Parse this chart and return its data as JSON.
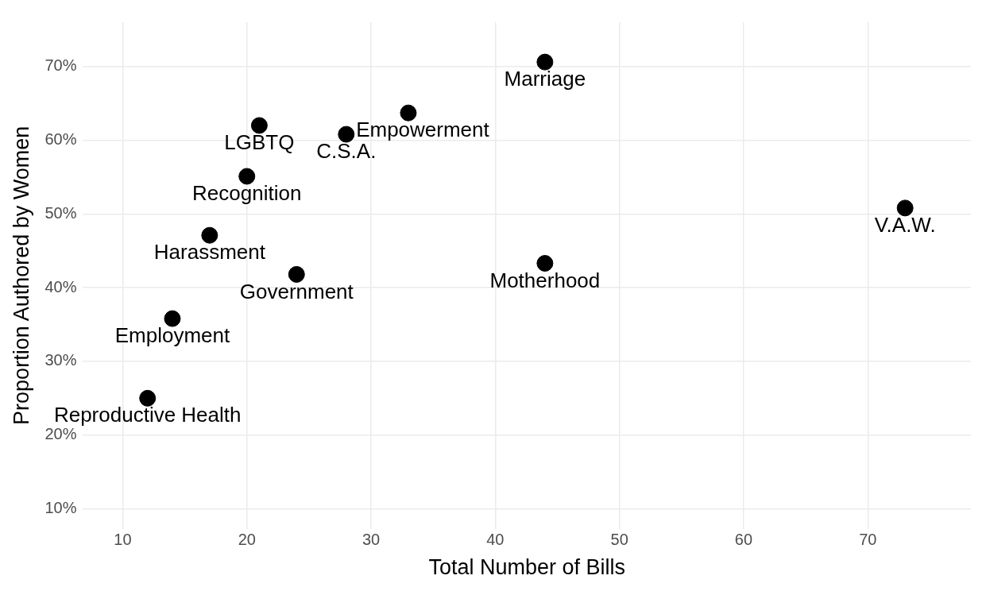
{
  "chart_data": {
    "type": "scatter",
    "xlabel": "Total Number of Bills",
    "ylabel": "Proportion Authored by Women",
    "x": [
      12,
      14,
      17,
      20,
      21,
      24,
      28,
      33,
      44,
      44,
      73
    ],
    "values": [
      25,
      35.8,
      47.1,
      55.1,
      62,
      41.8,
      60.8,
      63.7,
      70.6,
      43.3,
      50.8
    ],
    "color": "#000000",
    "marker": "circle",
    "grid": true,
    "xlim": [
      6.8,
      78.3
    ],
    "xticks": [
      10,
      20,
      30,
      40,
      50,
      60,
      70
    ],
    "ylim": [
      7.3,
      76
    ],
    "yticks": [
      {
        "value": 10,
        "label": "10%"
      },
      {
        "value": 20,
        "label": "20%"
      },
      {
        "value": 30,
        "label": "30%"
      },
      {
        "value": 40,
        "label": "40%"
      },
      {
        "value": 50,
        "label": "50%"
      },
      {
        "value": 60,
        "label": "60%"
      },
      {
        "value": 70,
        "label": "70%"
      }
    ],
    "annotations": [
      {
        "text": "Reproductive Health",
        "x": 12,
        "y": 25
      },
      {
        "text": "Employment",
        "x": 14,
        "y": 35.8
      },
      {
        "text": "Harassment",
        "x": 17,
        "y": 47.1
      },
      {
        "text": "Recognition",
        "x": 20,
        "y": 55.1
      },
      {
        "text": "LGBTQ",
        "x": 21,
        "y": 62
      },
      {
        "text": "Government",
        "x": 24,
        "y": 41.8
      },
      {
        "text": "C.S.A.",
        "x": 28,
        "y": 60.8
      },
      {
        "text": "Empowerment",
        "x": 33,
        "y": 63.7
      },
      {
        "text": "Marriage",
        "x": 44,
        "y": 70.6
      },
      {
        "text": "Motherhood",
        "x": 44,
        "y": 43.3
      },
      {
        "text": "V.A.W.",
        "x": 73,
        "y": 50.8
      }
    ]
  }
}
